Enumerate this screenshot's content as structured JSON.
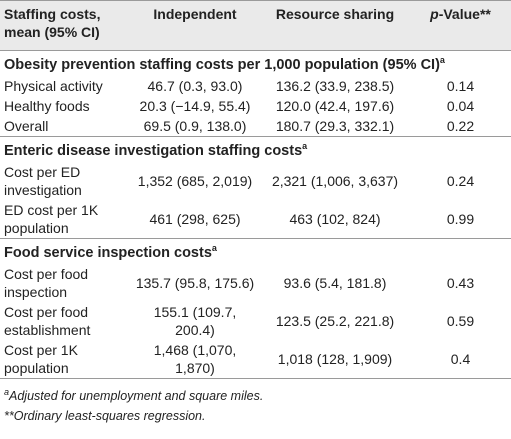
{
  "table": {
    "headers": {
      "col1": "Staffing costs, mean (95% CI)",
      "col2": "Independent",
      "col3": "Resource sharing",
      "col4_italic": "p",
      "col4_rest": "-Value**"
    },
    "sections": [
      {
        "title": "Obesity prevention staffing costs per 1,000 population (95% CI)",
        "sup": "a",
        "rows": [
          {
            "label": "Physical activity",
            "independent": "46.7 (0.3, 93.0)",
            "resource": "136.2 (33.9, 238.5)",
            "p": "0.14"
          },
          {
            "label": "Healthy foods",
            "independent": "20.3 (−14.9, 55.4)",
            "resource": "120.0 (42.4, 197.6)",
            "p": "0.04"
          },
          {
            "label": "Overall",
            "independent": "69.5 (0.9, 138.0)",
            "resource": "180.7 (29.3, 332.1)",
            "p": "0.22"
          }
        ]
      },
      {
        "title": "Enteric disease investigation staffing costs",
        "sup": "a",
        "rows": [
          {
            "label": "Cost per ED investigation",
            "independent": "1,352 (685, 2,019)",
            "resource": "2,321 (1,006, 3,637)",
            "p": "0.24"
          },
          {
            "label": "ED cost per 1K population",
            "independent": "461 (298, 625)",
            "resource": "463 (102, 824)",
            "p": "0.99"
          }
        ]
      },
      {
        "title": "Food service inspection costs",
        "sup": "a",
        "rows": [
          {
            "label": "Cost per food inspection",
            "independent": "135.7 (95.8, 175.6)",
            "resource": "93.6 (5.4, 181.8)",
            "p": "0.43"
          },
          {
            "label": "Cost per food establishment",
            "independent": "155.1 (109.7, 200.4)",
            "resource": "123.5 (25.2, 221.8)",
            "p": "0.59"
          },
          {
            "label": "Cost per 1K population",
            "independent": "1,468 (1,070, 1,870)",
            "resource": "1,018 (128, 1,909)",
            "p": "0.4"
          }
        ]
      }
    ]
  },
  "footnotes": {
    "a_sup": "a",
    "a_text": "Adjusted for unemployment and square miles.",
    "b_text": "**Ordinary least-squares regression."
  }
}
